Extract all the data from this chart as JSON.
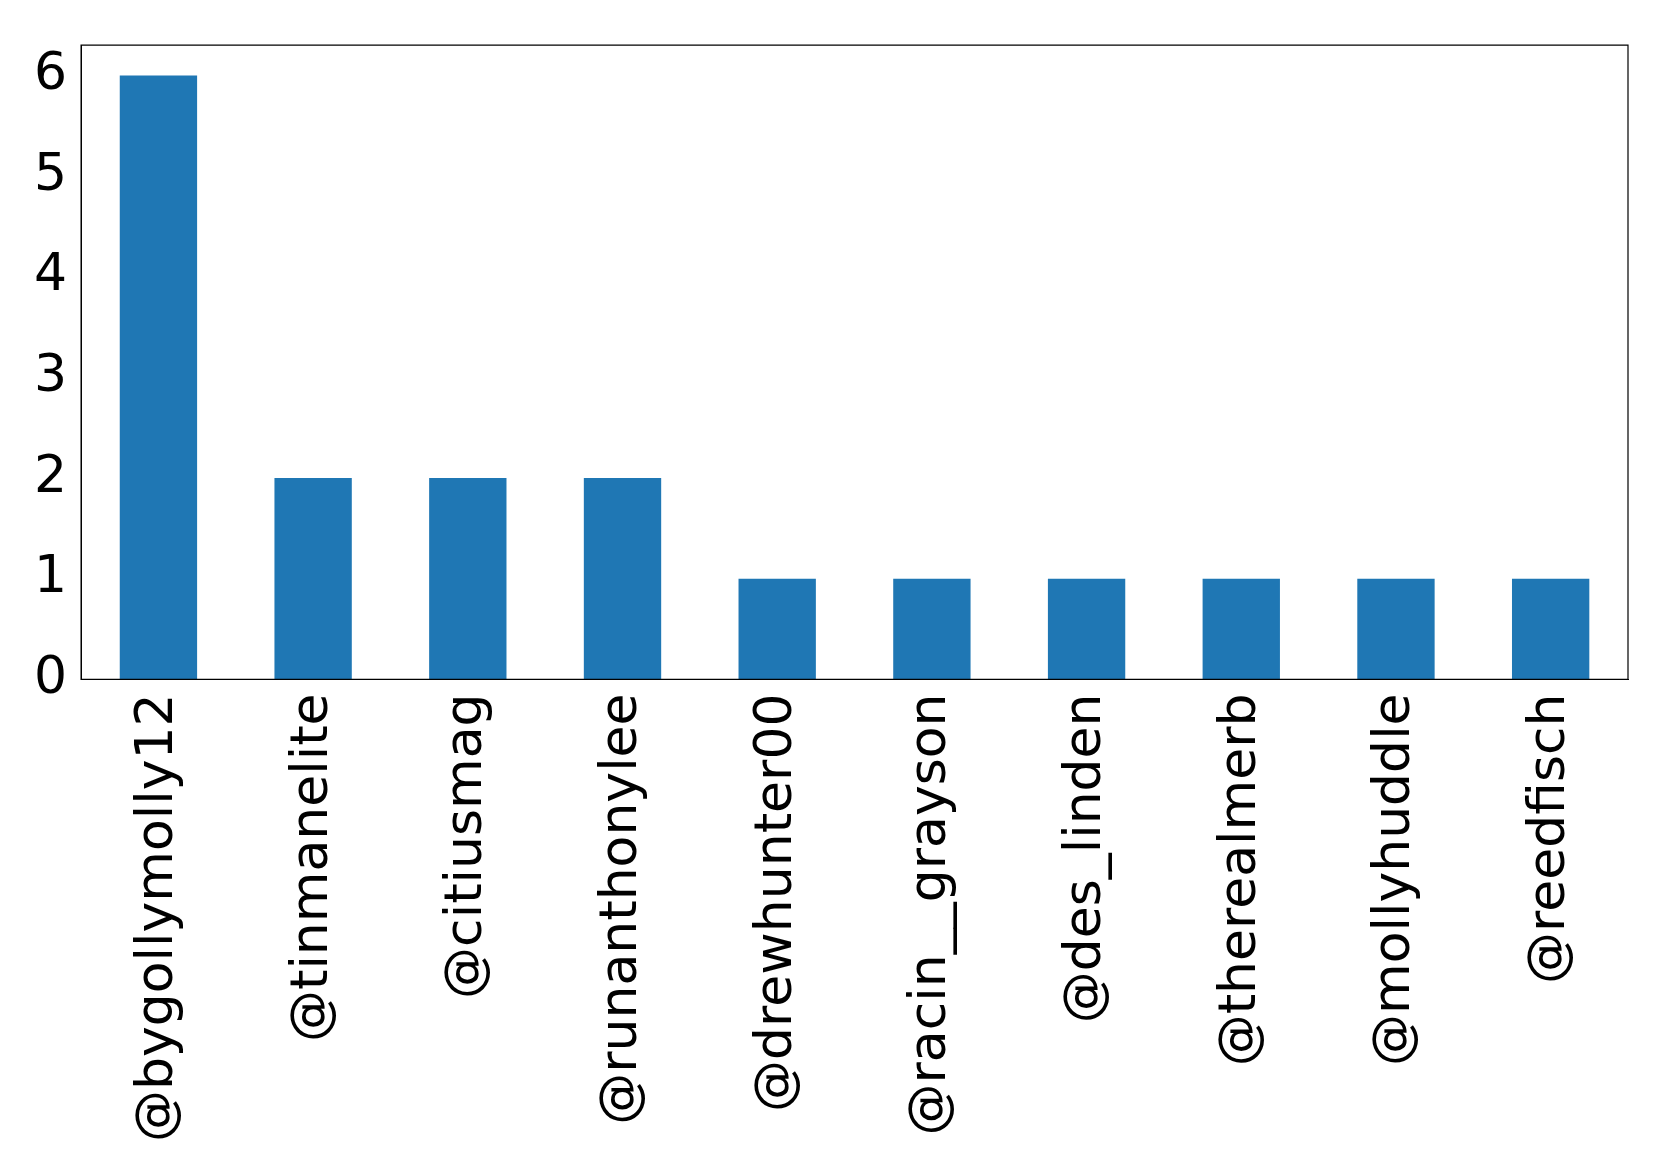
{
  "chart_data": {
    "type": "bar",
    "categories": [
      "@bygollymolly12",
      "@tinmanelite",
      "@citiusmag",
      "@runanthonylee",
      "@drewhunter00",
      "@racin__grayson",
      "@des_linden",
      "@therealmerb",
      "@mollyhuddle",
      "@reedfisch"
    ],
    "values": [
      6,
      2,
      2,
      2,
      1,
      1,
      1,
      1,
      1,
      1
    ],
    "color": "#1f77b4",
    "ylim": [
      0,
      6.3
    ],
    "yticks": [
      0,
      1,
      2,
      3,
      4,
      5,
      6
    ],
    "grid": false,
    "legend": false
  }
}
